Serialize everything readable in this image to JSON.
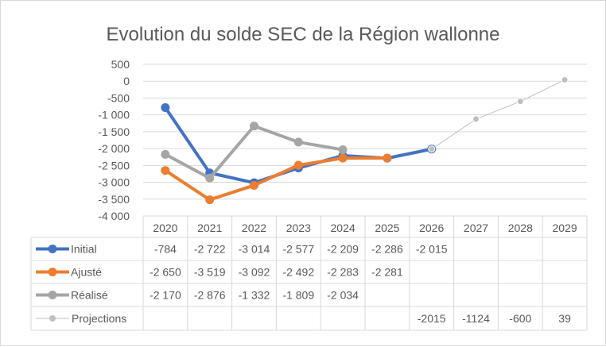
{
  "chart_data": {
    "type": "line",
    "title": "Evolution du solde SEC de la Région wallonne",
    "categories": [
      "2020",
      "2021",
      "2022",
      "2023",
      "2024",
      "2025",
      "2026",
      "2027",
      "2028",
      "2029"
    ],
    "ylim": [
      -4000,
      500
    ],
    "yticks": [
      500,
      0,
      -500,
      -1000,
      -1500,
      -2000,
      -2500,
      -3000,
      -3500,
      -4000
    ],
    "ytick_labels": [
      "500",
      "0",
      "-500",
      "-1 000",
      "-1 500",
      "-2 000",
      "-2 500",
      "-3 000",
      "-3 500",
      "-4 000"
    ],
    "grid": true,
    "legend": "data-table",
    "series": [
      {
        "name": "Initial",
        "color": "#4472c4",
        "values": [
          -784,
          -2722,
          -3014,
          -2577,
          -2209,
          -2286,
          -2015,
          null,
          null,
          null
        ],
        "labels": [
          "-784",
          "-2 722",
          "-3 014",
          "-2 577",
          "-2 209",
          "-2 286",
          "-2 015",
          "",
          "",
          ""
        ]
      },
      {
        "name": "Ajusté",
        "color": "#ed7d31",
        "values": [
          -2650,
          -3519,
          -3092,
          -2492,
          -2283,
          -2281,
          null,
          null,
          null,
          null
        ],
        "labels": [
          "-2 650",
          "-3 519",
          "-3 092",
          "-2 492",
          "-2 283",
          "-2 281",
          "",
          "",
          "",
          ""
        ]
      },
      {
        "name": "Réalisé",
        "color": "#a5a5a5",
        "values": [
          -2170,
          -2876,
          -1332,
          -1809,
          -2034,
          null,
          null,
          null,
          null,
          null
        ],
        "labels": [
          "-2 170",
          "-2 876",
          "-1 332",
          "-1 809",
          "-2 034",
          "",
          "",
          "",
          "",
          ""
        ]
      },
      {
        "name": "Projections",
        "color": "#bfbfbf",
        "values": [
          null,
          null,
          null,
          null,
          null,
          null,
          -2015,
          -1124,
          -600,
          39
        ],
        "labels": [
          "",
          "",
          "",
          "",
          "",
          "",
          "-2015",
          "-1124",
          "-600",
          "39"
        ]
      }
    ]
  }
}
